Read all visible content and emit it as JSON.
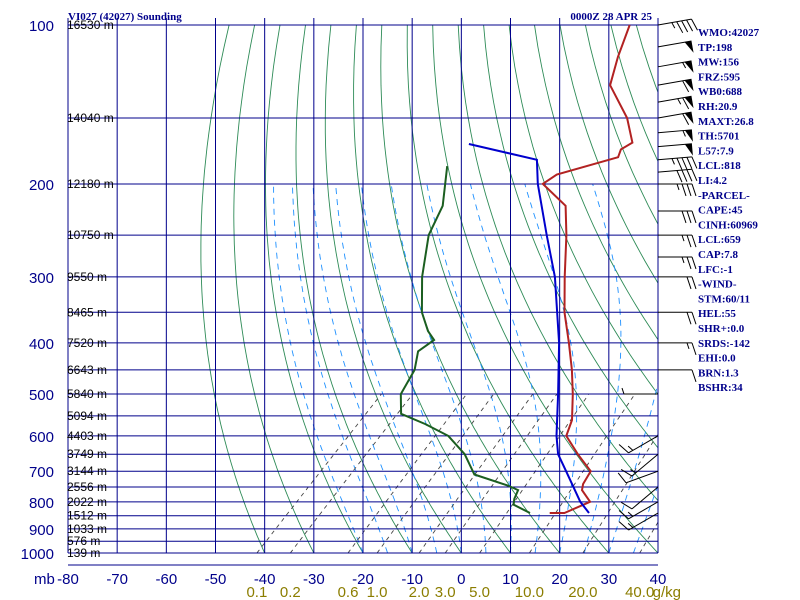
{
  "header": {
    "station": "VI027 (42027) Sounding",
    "time": "0000Z 28 APR 25"
  },
  "info_panel": [
    "WMO:42027",
    "TP:198",
    "MW:156",
    "FRZ:595",
    "WB0:688",
    "RH:20.9",
    "MAXT:26.8",
    "TH:5701",
    "L57:7.9",
    "LCL:818",
    "LI:4.2",
    "-PARCEL-",
    "CAPE:45",
    "CINH:60969",
    "LCL:659",
    "CAP:7.8",
    "LFC:-1",
    "-WIND-",
    "STM:60/11",
    "HEL:55",
    "SHR+:0.0",
    "SRDS:-142",
    "EHI:0.0",
    "BRN:1.3",
    "BSHR:34"
  ],
  "axis": {
    "pressure_unit": "mb",
    "mixing_ratio_unit": "g/kg"
  },
  "colors": {
    "grid": "#00008b",
    "temperature": "#b22222",
    "dewpoint": "#1b5e20",
    "parcel": "#0000cd",
    "dry_adiabat": "#2e8b57",
    "moist_adiabat": "#1e90ff",
    "mixing_ratio": "#444444",
    "wind": "#000000"
  },
  "chart_data": {
    "type": "line",
    "chart_kind": "skew-T log-P sounding",
    "y_scale": "log",
    "ylim": [
      1000,
      100
    ],
    "xlim": [
      -80,
      40
    ],
    "pressure_levels": [
      100,
      200,
      300,
      400,
      500,
      600,
      700,
      800,
      900,
      1000
    ],
    "pressure_tick_labels": [
      "100",
      "200",
      "300",
      "400",
      "500",
      "600",
      "700",
      "800",
      "900",
      "1000"
    ],
    "temperature_ticks": [
      -80,
      -70,
      -60,
      -50,
      -40,
      -30,
      -20,
      -10,
      0,
      10,
      20,
      30,
      40
    ],
    "temperature_tick_labels": [
      "-80",
      "-70",
      "-60",
      "-50",
      "-40",
      "-30",
      "-20",
      "-10",
      "0",
      "10",
      "20",
      "30",
      "40"
    ],
    "height_levels": [
      {
        "p": 100,
        "label": "16530 m"
      },
      {
        "p": 150,
        "label": "14040 m"
      },
      {
        "p": 200,
        "label": "12180 m"
      },
      {
        "p": 250,
        "label": "10750 m"
      },
      {
        "p": 300,
        "label": "9550 m"
      },
      {
        "p": 350,
        "label": "8465 m"
      },
      {
        "p": 400,
        "label": "7520 m"
      },
      {
        "p": 450,
        "label": "6643 m"
      },
      {
        "p": 500,
        "label": "5840 m"
      },
      {
        "p": 550,
        "label": "5094 m"
      },
      {
        "p": 600,
        "label": "4403 m"
      },
      {
        "p": 650,
        "label": "3749 m"
      },
      {
        "p": 700,
        "label": "3144 m"
      },
      {
        "p": 750,
        "label": "2556 m"
      },
      {
        "p": 800,
        "label": "2022 m"
      },
      {
        "p": 850,
        "label": "1512 m"
      },
      {
        "p": 900,
        "label": "1033 m"
      },
      {
        "p": 950,
        "label": "576 m"
      },
      {
        "p": 1000,
        "label": "139 m"
      }
    ],
    "mixing_ratio_labels": [
      "0.1",
      "0.2",
      "0.6",
      "1.0",
      "2.0",
      "3.0",
      "5.0",
      "10.0",
      "20.0",
      "40.0"
    ],
    "mixing_ratio_values": [
      0.1,
      0.2,
      0.6,
      1.0,
      2.0,
      3.0,
      5.0,
      10.0,
      20.0,
      40.0
    ],
    "series": [
      {
        "key": "temperature",
        "points": [
          {
            "p": 840,
            "t": 10
          },
          {
            "p": 840,
            "t": 13
          },
          {
            "p": 800,
            "t": 16
          },
          {
            "p": 760,
            "t": 12
          },
          {
            "p": 740,
            "t": 11
          },
          {
            "p": 700,
            "t": 10
          },
          {
            "p": 650,
            "t": 4
          },
          {
            "p": 600,
            "t": -2
          },
          {
            "p": 560,
            "t": -4
          },
          {
            "p": 500,
            "t": -9
          },
          {
            "p": 450,
            "t": -14
          },
          {
            "p": 400,
            "t": -20
          },
          {
            "p": 350,
            "t": -27
          },
          {
            "p": 300,
            "t": -34
          },
          {
            "p": 250,
            "t": -42
          },
          {
            "p": 220,
            "t": -48
          },
          {
            "p": 200,
            "t": -57
          },
          {
            "p": 192,
            "t": -56
          },
          {
            "p": 178,
            "t": -47
          },
          {
            "p": 172,
            "t": -48
          },
          {
            "p": 167,
            "t": -47
          },
          {
            "p": 150,
            "t": -53
          },
          {
            "p": 130,
            "t": -63
          },
          {
            "p": 115,
            "t": -67
          },
          {
            "p": 100,
            "t": -71
          }
        ]
      },
      {
        "key": "dewpoint",
        "points": [
          {
            "p": 840,
            "t": 6
          },
          {
            "p": 810,
            "t": 1
          },
          {
            "p": 790,
            "t": 0
          },
          {
            "p": 760,
            "t": -1
          },
          {
            "p": 745,
            "t": -4
          },
          {
            "p": 710,
            "t": -13
          },
          {
            "p": 650,
            "t": -19
          },
          {
            "p": 600,
            "t": -26
          },
          {
            "p": 570,
            "t": -33
          },
          {
            "p": 545,
            "t": -40
          },
          {
            "p": 500,
            "t": -44
          },
          {
            "p": 450,
            "t": -46
          },
          {
            "p": 415,
            "t": -49
          },
          {
            "p": 395,
            "t": -48
          },
          {
            "p": 380,
            "t": -51
          },
          {
            "p": 350,
            "t": -56
          },
          {
            "p": 300,
            "t": -63
          },
          {
            "p": 250,
            "t": -70
          },
          {
            "p": 220,
            "t": -73
          },
          {
            "p": 185,
            "t": -80
          }
        ]
      },
      {
        "key": "parcel",
        "points": [
          {
            "p": 840,
            "t": 18
          },
          {
            "p": 800,
            "t": 14
          },
          {
            "p": 700,
            "t": 5
          },
          {
            "p": 650,
            "t": 0
          },
          {
            "p": 600,
            "t": -4
          },
          {
            "p": 500,
            "t": -12
          },
          {
            "p": 400,
            "t": -22
          },
          {
            "p": 300,
            "t": -36
          },
          {
            "p": 250,
            "t": -46
          },
          {
            "p": 200,
            "t": -58
          },
          {
            "p": 180,
            "t": -63
          },
          {
            "p": 168,
            "t": -80
          }
        ]
      }
    ],
    "wind_barbs": [
      {
        "p": 100,
        "dir": 80,
        "spd": 45
      },
      {
        "p": 110,
        "dir": 80,
        "spd": 50
      },
      {
        "p": 120,
        "dir": 80,
        "spd": 55
      },
      {
        "p": 130,
        "dir": 80,
        "spd": 60
      },
      {
        "p": 140,
        "dir": 80,
        "spd": 65
      },
      {
        "p": 150,
        "dir": 80,
        "spd": 60
      },
      {
        "p": 160,
        "dir": 85,
        "spd": 55
      },
      {
        "p": 170,
        "dir": 85,
        "spd": 50
      },
      {
        "p": 180,
        "dir": 85,
        "spd": 45
      },
      {
        "p": 190,
        "dir": 85,
        "spd": 40
      },
      {
        "p": 200,
        "dir": 90,
        "spd": 35
      },
      {
        "p": 225,
        "dir": 90,
        "spd": 30
      },
      {
        "p": 250,
        "dir": 90,
        "spd": 25
      },
      {
        "p": 275,
        "dir": 90,
        "spd": 25
      },
      {
        "p": 300,
        "dir": 90,
        "spd": 20
      },
      {
        "p": 350,
        "dir": 90,
        "spd": 20
      },
      {
        "p": 400,
        "dir": 90,
        "spd": 15
      },
      {
        "p": 450,
        "dir": 90,
        "spd": 10
      },
      {
        "p": 500,
        "dir": 270,
        "spd": 5
      },
      {
        "p": 600,
        "dir": 240,
        "spd": 15
      },
      {
        "p": 650,
        "dir": 230,
        "spd": 15
      },
      {
        "p": 700,
        "dir": 250,
        "spd": 10
      },
      {
        "p": 750,
        "dir": 230,
        "spd": 10
      },
      {
        "p": 800,
        "dir": 240,
        "spd": 15
      },
      {
        "p": 840,
        "dir": 240,
        "spd": 15
      }
    ]
  }
}
